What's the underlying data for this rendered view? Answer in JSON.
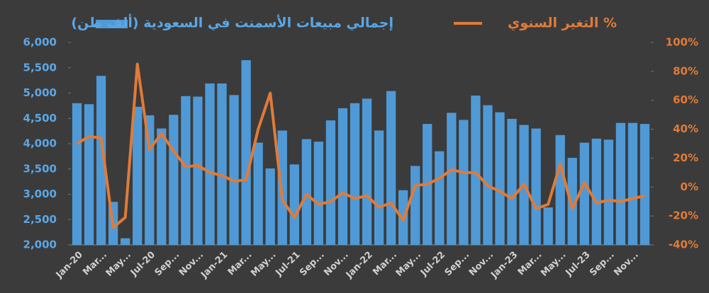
{
  "chart_data": {
    "type": "bar-line",
    "categories": [
      "Jan-20",
      null,
      "Mar...",
      null,
      "May...",
      null,
      "Jul-20",
      null,
      "Sep...",
      null,
      "Nov...",
      null,
      "Jan-21",
      null,
      "Mar...",
      null,
      "May...",
      null,
      "Jul-21",
      null,
      "Sep...",
      null,
      "Nov...",
      null,
      "Jan-22",
      null,
      "Mar...",
      null,
      "May...",
      null,
      "Jul-22",
      null,
      "Sep...",
      null,
      "Nov...",
      null,
      "Jan-23",
      null,
      "Mar...",
      null,
      "May...",
      null,
      "Jul-23",
      null,
      "Sep...",
      null,
      "Nov...",
      null
    ],
    "series": [
      {
        "name": "إجمالي مبيعات الأسمنت في السعودية (ألف طن)",
        "type": "bar",
        "color": "#4f9ad6",
        "values": [
          4800,
          4780,
          5340,
          2850,
          2130,
          4730,
          4560,
          4300,
          4570,
          4940,
          4930,
          5190,
          5190,
          4960,
          5650,
          4020,
          3510,
          4260,
          3590,
          4090,
          4040,
          4460,
          4700,
          4800,
          4890,
          4260,
          5040,
          3080,
          3560,
          4390,
          3850,
          4610,
          4470,
          4950,
          4760,
          4620,
          4490,
          4370,
          4300,
          2740,
          4170,
          3720,
          4020,
          4100,
          4080,
          4410,
          4410,
          4390
        ]
      },
      {
        "name": "التغير السنوي %",
        "type": "line",
        "axis": "y2",
        "color": "#e07b39",
        "values": [
          30,
          35,
          34,
          -28,
          -21,
          85,
          26,
          37,
          25,
          14,
          15,
          10,
          8,
          4,
          5,
          40,
          65,
          -9,
          -21,
          -5,
          -12,
          -10,
          -4,
          -8,
          -6,
          -14,
          -11,
          -23,
          1,
          2,
          6,
          12,
          10,
          10,
          1,
          -3,
          -8,
          2,
          -15,
          -12,
          16,
          -15,
          3,
          -11,
          -9,
          -10,
          -8,
          -6
        ]
      }
    ],
    "ylim": [
      2000,
      6000
    ],
    "yticks": [
      {
        "value": 2000,
        "label": "2,000"
      },
      {
        "value": 2500,
        "label": "2,500"
      },
      {
        "value": 3000,
        "label": "3,000"
      },
      {
        "value": 3500,
        "label": "3,500"
      },
      {
        "value": 4000,
        "label": "4,000"
      },
      {
        "value": 4500,
        "label": "4,500"
      },
      {
        "value": 5000,
        "label": "5,000"
      },
      {
        "value": 5500,
        "label": "5,500"
      },
      {
        "value": 6000,
        "label": "6,000"
      }
    ],
    "y2lim": [
      -40,
      100
    ],
    "y2ticks": [
      {
        "value": -40,
        "label": "-40%"
      },
      {
        "value": -20,
        "label": "-20%"
      },
      {
        "value": 0,
        "label": "0%"
      },
      {
        "value": 20,
        "label": "20%"
      },
      {
        "value": 40,
        "label": "40%"
      },
      {
        "value": 60,
        "label": "60%"
      },
      {
        "value": 80,
        "label": "80%"
      },
      {
        "value": 100,
        "label": "100%"
      }
    ],
    "grid": false
  }
}
